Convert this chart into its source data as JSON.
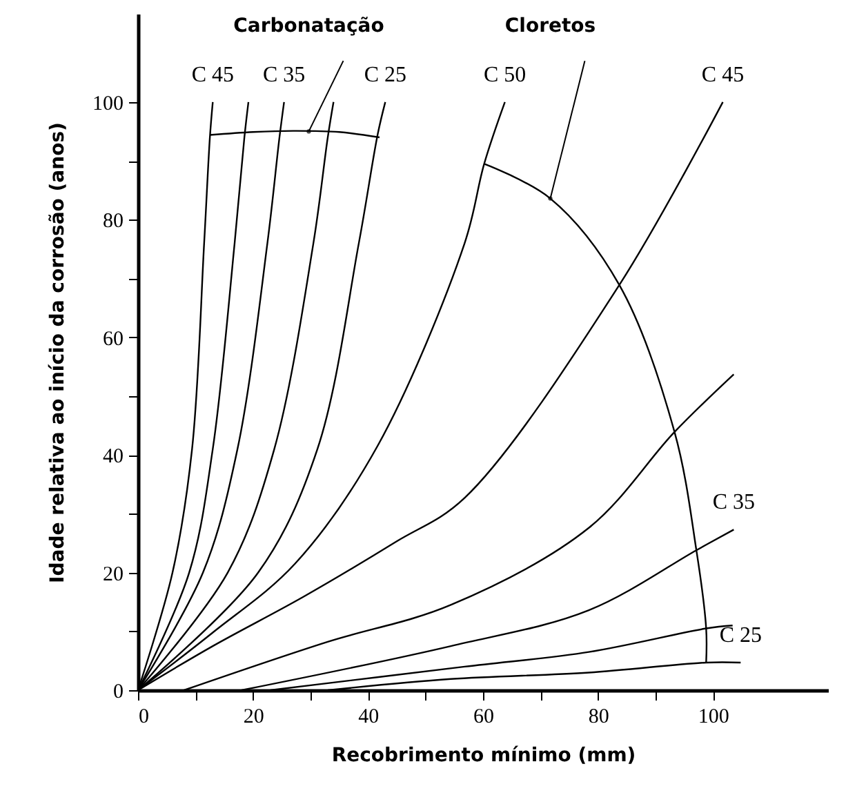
{
  "chart_data": {
    "type": "line",
    "xlabel": "Recobrimento mínimo (mm)",
    "ylabel": "Idade relativa ao início da corrosão (anos)",
    "xlim": [
      0,
      120
    ],
    "ylim": [
      0,
      115
    ],
    "xticks": [
      0,
      {
        "value": 10,
        "label": null
      },
      20,
      {
        "value": 30,
        "label": null
      },
      40,
      {
        "value": 50,
        "label": null
      },
      60,
      {
        "value": 70,
        "label": null
      },
      80,
      {
        "value": 90,
        "label": null
      },
      100
    ],
    "yticks": [
      0,
      {
        "value": 10,
        "label": null
      },
      20,
      {
        "value": 30,
        "label": null
      },
      40,
      {
        "value": 50,
        "label": null
      },
      60,
      {
        "value": 70,
        "label": null
      },
      80,
      {
        "value": 90,
        "label": null
      },
      100
    ],
    "grid": false,
    "marker": "none",
    "line_style": "solid",
    "annotations": [
      {
        "text": "Carbonatação",
        "x": 29.7,
        "y": 95
      },
      {
        "text": "Cloretos",
        "x": 71.7,
        "y": 83.6
      }
    ],
    "series": [
      {
        "name": "C 45",
        "color": "#000000",
        "x": [
          0,
          6,
          9.4,
          11.5,
          12.5,
          13
        ],
        "values": [
          0,
          20,
          41,
          76,
          94,
          100
        ]
      },
      {
        "color": "#000000",
        "x": [
          0,
          8.9,
          13,
          16.8,
          18.5,
          19.2
        ],
        "values": [
          0,
          20,
          41,
          76,
          94,
          100
        ]
      },
      {
        "name": "C 35",
        "color": "#000000",
        "x": [
          0,
          11.3,
          17.3,
          22.5,
          24.6,
          25.4
        ],
        "values": [
          0,
          20,
          41,
          76,
          94,
          100
        ]
      },
      {
        "color": "#000000",
        "x": [
          0,
          15.6,
          23.7,
          30.5,
          33,
          34
        ],
        "values": [
          0,
          20,
          41,
          76,
          94,
          100
        ]
      },
      {
        "name": "C 25",
        "color": "#000000",
        "x": [
          0,
          20.9,
          31.2,
          38.4,
          41.7,
          43
        ],
        "values": [
          0,
          20,
          41,
          76,
          94.6,
          100
        ]
      },
      {
        "color": "#000000",
        "x": [
          12.5,
          20,
          27,
          35,
          42
        ],
        "values": [
          94.4,
          94.9,
          95.1,
          94.9,
          94
        ]
      },
      {
        "name": "C 50",
        "color": "#000000",
        "x": [
          0,
          13,
          27.3,
          41.7,
          56.8,
          60.2,
          63.8
        ],
        "values": [
          0,
          9.8,
          21.5,
          41.6,
          76,
          89.5,
          100
        ]
      },
      {
        "name": "C 45",
        "color": "#000000",
        "x": [
          0,
          13,
          28.8,
          44.8,
          56.8,
          83.7,
          101.7
        ],
        "values": [
          0,
          7.5,
          15.9,
          25.2,
          32.7,
          68.9,
          100
        ]
      },
      {
        "color": "#000000",
        "x": [
          8,
          32.9,
          54.4,
          78.4,
          93.3,
          103.6
        ],
        "values": [
          0,
          8.2,
          14.5,
          27.6,
          43.9,
          53.7
        ]
      },
      {
        "name": "C 35",
        "color": "#000000",
        "x": [
          18,
          54.4,
          78.4,
          97.1,
          103.6
        ],
        "values": [
          0,
          7.5,
          13.6,
          23.8,
          27.3
        ]
      },
      {
        "color": "#000000",
        "x": [
          23,
          56.8,
          78.4,
          98.8,
          103.4
        ],
        "values": [
          0,
          4,
          6.5,
          10.5,
          11
        ]
      },
      {
        "name": "C 25",
        "color": "#000000",
        "x": [
          33,
          54.4,
          78.4,
          98.8,
          104.8
        ],
        "values": [
          0,
          1.9,
          3,
          4.7,
          4.7
        ]
      },
      {
        "color": "#000000",
        "x": [
          60.2,
          71.7,
          83.7,
          93.3,
          97.1,
          98.8,
          98.8
        ],
        "values": [
          89.5,
          83.6,
          68.9,
          43.9,
          23.8,
          10.5,
          4.7
        ]
      }
    ]
  }
}
